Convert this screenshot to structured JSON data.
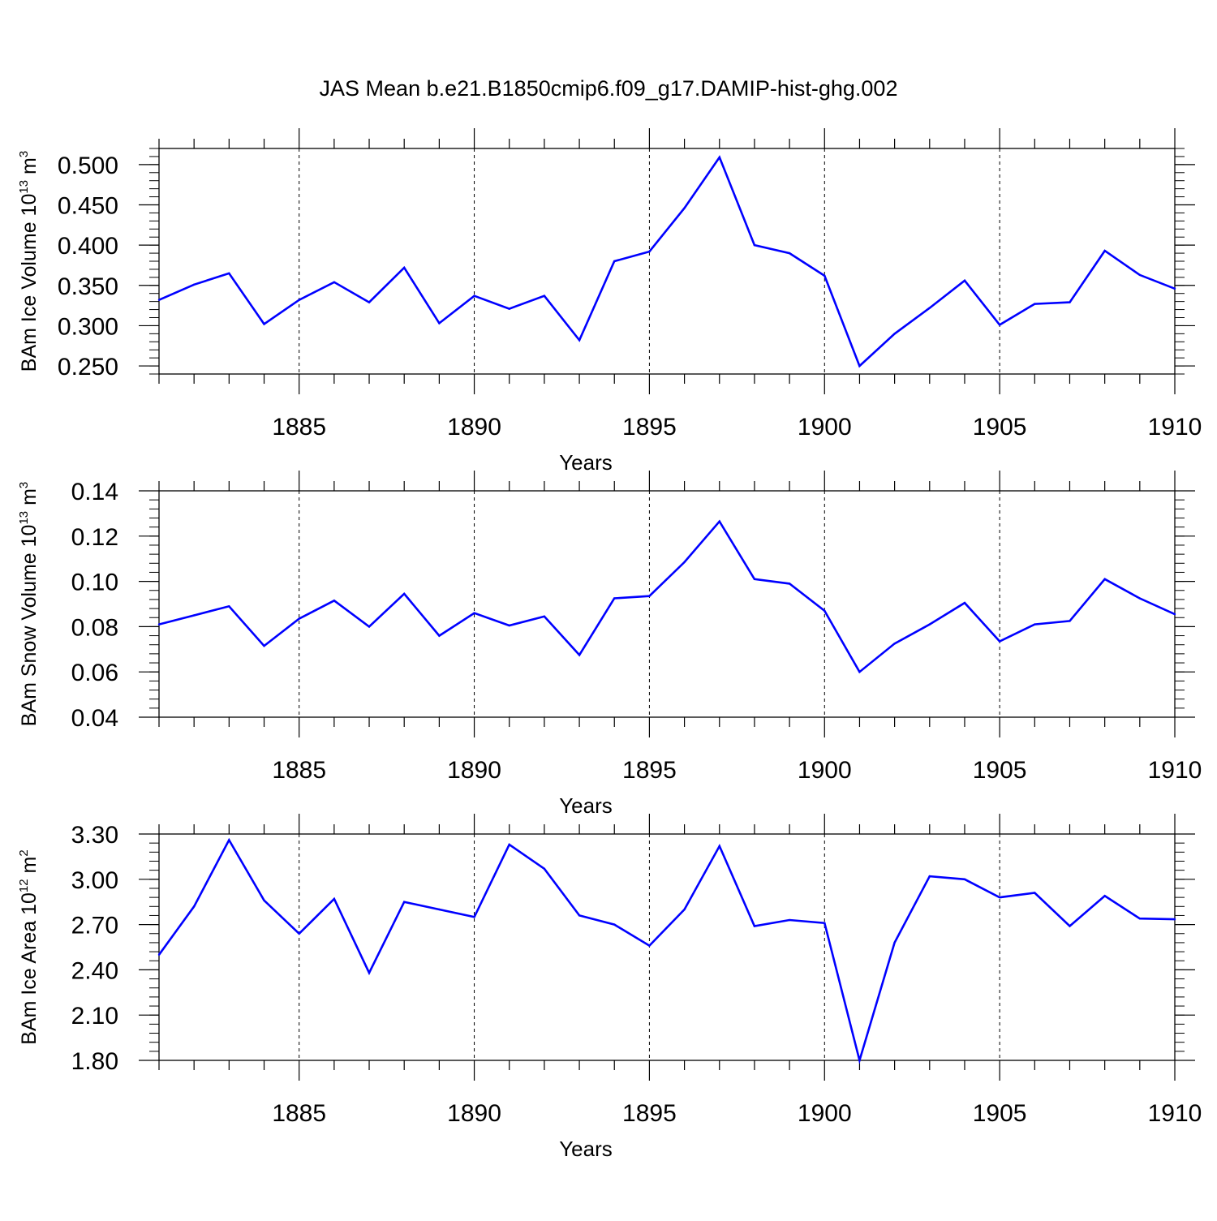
{
  "title": "JAS Mean b.e21.B1850cmip6.f09_g17.DAMIP-hist-ghg.002",
  "colors": {
    "line": "#0000ff",
    "axis": "#000000",
    "grid": "#000000"
  },
  "chart_data": [
    {
      "type": "line",
      "id": "ice-volume",
      "ylabel_prefix": "BAm Ice Volume 10",
      "ylabel_exp": "13",
      "ylabel_unit": " m",
      "ylabel_unit_exp": "3",
      "xlabel": "Years",
      "xlim": [
        1881,
        1910
      ],
      "ylim": [
        0.24,
        0.52
      ],
      "yticks": [
        0.25,
        0.3,
        0.35,
        0.4,
        0.45,
        0.5
      ],
      "ytick_labels": [
        "0.250",
        "0.300",
        "0.350",
        "0.400",
        "0.450",
        "0.500"
      ],
      "yminor_step": 0.01,
      "xticks": [
        1885,
        1890,
        1895,
        1900,
        1905,
        1910
      ],
      "xtick_labels": [
        "1885",
        "1890",
        "1895",
        "1900",
        "1905",
        "1910"
      ],
      "x": [
        1881,
        1882,
        1883,
        1884,
        1885,
        1886,
        1887,
        1888,
        1889,
        1890,
        1891,
        1892,
        1893,
        1894,
        1895,
        1896,
        1897,
        1898,
        1899,
        1900,
        1901,
        1902,
        1903,
        1904,
        1905,
        1906,
        1907,
        1908,
        1909,
        1910
      ],
      "values": [
        0.332,
        0.351,
        0.365,
        0.302,
        0.332,
        0.354,
        0.329,
        0.372,
        0.303,
        0.337,
        0.321,
        0.337,
        0.282,
        0.38,
        0.392,
        0.446,
        0.509,
        0.4,
        0.39,
        0.362,
        0.25,
        0.29,
        0.322,
        0.356,
        0.301,
        0.327,
        0.329,
        0.393,
        0.363,
        0.346
      ]
    },
    {
      "type": "line",
      "id": "snow-volume",
      "ylabel_prefix": "BAm Snow Volume 10",
      "ylabel_exp": "13",
      "ylabel_unit": " m",
      "ylabel_unit_exp": "3",
      "xlabel": "Years",
      "xlim": [
        1881,
        1910
      ],
      "ylim": [
        0.04,
        0.14
      ],
      "yticks": [
        0.04,
        0.06,
        0.08,
        0.1,
        0.12,
        0.14
      ],
      "ytick_labels": [
        "0.04",
        "0.06",
        "0.08",
        "0.10",
        "0.12",
        "0.14"
      ],
      "yminor_step": 0.004,
      "xticks": [
        1885,
        1890,
        1895,
        1900,
        1905,
        1910
      ],
      "xtick_labels": [
        "1885",
        "1890",
        "1895",
        "1900",
        "1905",
        "1910"
      ],
      "x": [
        1881,
        1882,
        1883,
        1884,
        1885,
        1886,
        1887,
        1888,
        1889,
        1890,
        1891,
        1892,
        1893,
        1894,
        1895,
        1896,
        1897,
        1898,
        1899,
        1900,
        1901,
        1902,
        1903,
        1904,
        1905,
        1906,
        1907,
        1908,
        1909,
        1910
      ],
      "values": [
        0.081,
        0.085,
        0.089,
        0.0715,
        0.0835,
        0.0915,
        0.08,
        0.0945,
        0.076,
        0.086,
        0.0805,
        0.0845,
        0.0675,
        0.0925,
        0.0935,
        0.1085,
        0.1265,
        0.101,
        0.099,
        0.087,
        0.06,
        0.0725,
        0.081,
        0.0905,
        0.0735,
        0.081,
        0.0825,
        0.101,
        0.0925,
        0.0855
      ]
    },
    {
      "type": "line",
      "id": "ice-area",
      "ylabel_prefix": "BAm Ice Area 10",
      "ylabel_exp": "12",
      "ylabel_unit": " m",
      "ylabel_unit_exp": "2",
      "xlabel": "Years",
      "xlim": [
        1881,
        1910
      ],
      "ylim": [
        1.8,
        3.3
      ],
      "yticks": [
        1.8,
        2.1,
        2.4,
        2.7,
        3.0,
        3.3
      ],
      "ytick_labels": [
        "1.80",
        "2.10",
        "2.40",
        "2.70",
        "3.00",
        "3.30"
      ],
      "yminor_step": 0.06,
      "xticks": [
        1885,
        1890,
        1895,
        1900,
        1905,
        1910
      ],
      "xtick_labels": [
        "1885",
        "1890",
        "1895",
        "1900",
        "1905",
        "1910"
      ],
      "x": [
        1881,
        1882,
        1883,
        1884,
        1885,
        1886,
        1887,
        1888,
        1889,
        1890,
        1891,
        1892,
        1893,
        1894,
        1895,
        1896,
        1897,
        1898,
        1899,
        1900,
        1901,
        1902,
        1903,
        1904,
        1905,
        1906,
        1907,
        1908,
        1909,
        1910
      ],
      "values": [
        2.5,
        2.82,
        3.26,
        2.86,
        2.64,
        2.87,
        2.38,
        2.85,
        2.8,
        2.75,
        3.23,
        3.07,
        2.76,
        2.7,
        2.56,
        2.8,
        3.22,
        2.69,
        2.73,
        2.71,
        1.8,
        2.58,
        3.02,
        3.0,
        2.88,
        2.91,
        2.69,
        2.89,
        2.74,
        2.735
      ]
    }
  ]
}
